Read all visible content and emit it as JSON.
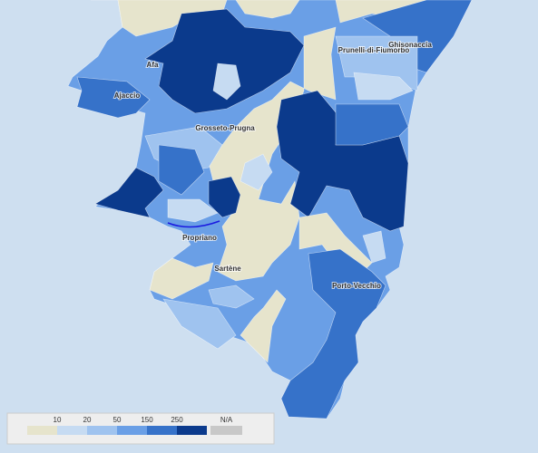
{
  "places": [
    "Prunelli-di-Fiumorbo",
    "Ghisonaccia",
    "Afa",
    "Ajaccio",
    "Grosseto-Prugna",
    "Propriano",
    "Sartène",
    "Porto-Vecchio"
  ],
  "legend": {
    "breaks": [
      10,
      20,
      50,
      150,
      250
    ],
    "na_label": "N/A",
    "colors": [
      "#e6e4cc",
      "#c6dbf2",
      "#9fc3ef",
      "#6a9fe6",
      "#3672c9",
      "#0b3a8c"
    ],
    "na_color": "#c8c8c8"
  }
}
